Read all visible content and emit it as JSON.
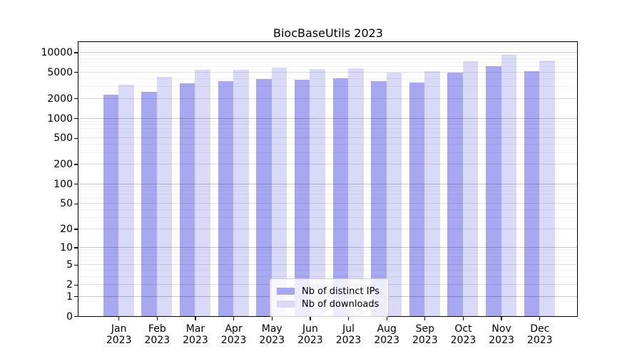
{
  "title": "BiocBaseUtils 2023",
  "chart_data": {
    "type": "bar",
    "title": "BiocBaseUtils 2023",
    "y_scale": "log1p",
    "ylim": [
      0,
      14300
    ],
    "y_ticks": [
      0,
      1,
      2,
      5,
      10,
      20,
      50,
      100,
      200,
      500,
      1000,
      2000,
      5000,
      10000
    ],
    "grid": {
      "major_horizontal": true,
      "minor_horizontal": true
    },
    "categories": [
      "Jan",
      "Feb",
      "Mar",
      "Apr",
      "May",
      "Jun",
      "Jul",
      "Aug",
      "Sep",
      "Oct",
      "Nov",
      "Dec"
    ],
    "category_year": "2023",
    "series": [
      {
        "name": "Nb of distinct IPs",
        "color": "#a7a7f2",
        "values": [
          2250,
          2500,
          3400,
          3600,
          3950,
          3850,
          4000,
          3650,
          3500,
          4950,
          6200,
          5200
        ]
      },
      {
        "name": "Nb of downloads",
        "color": "#d9d9f8",
        "values": [
          3250,
          4250,
          5400,
          5450,
          5800,
          5500,
          5750,
          4950,
          5100,
          7250,
          9050,
          7550
        ]
      }
    ],
    "legend_position": "inside lower center"
  },
  "colors": {
    "background": "#ffffff",
    "spine": "#000000",
    "grid_decade": "rgba(0,0,0,0.22)",
    "grid_labeled": "rgba(0,0,0,0.12)",
    "grid_minor": "rgba(0,0,0,0.055)",
    "legend_border": "#cccccc"
  }
}
